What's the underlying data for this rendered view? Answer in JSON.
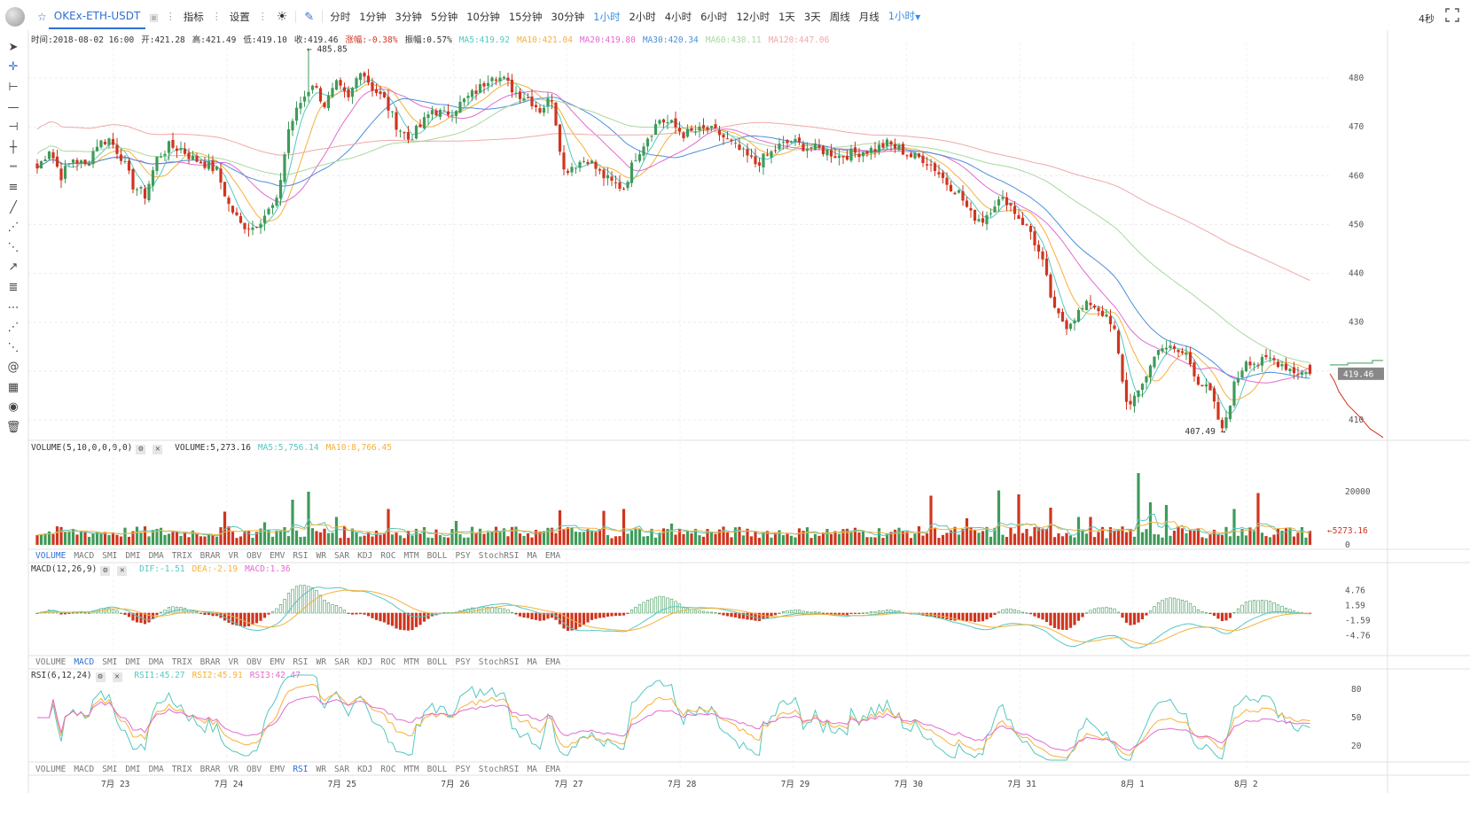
{
  "toolbar": {
    "symbol": "OKEx-ETH-USDT",
    "indicator": "指标",
    "settings": "设置",
    "periods": [
      "分时",
      "1分钟",
      "3分钟",
      "5分钟",
      "10分钟",
      "15分钟",
      "30分钟",
      "1小时",
      "2小时",
      "4小时",
      "6小时",
      "12小时",
      "1天",
      "3天",
      "周线",
      "月线"
    ],
    "active_period": "1小时",
    "period_dropdown": "1小时",
    "countdown": "4秒"
  },
  "info_line": {
    "time": "时间:2018-08-02 16:00",
    "open": "开:421.28",
    "high": "高:421.49",
    "low": "低:419.10",
    "close": "收:419.46",
    "change": "涨幅:-0.38%",
    "amplitude": "振幅:0.57%",
    "ma5": "MA5:419.92",
    "ma10": "MA10:421.04",
    "ma20": "MA20:419.80",
    "ma30": "MA30:420.34",
    "ma60": "MA60:430.11",
    "ma120": "MA120:447.06"
  },
  "volume_info": {
    "label": "VOLUME(5,10,0,0,0,0)",
    "volume": "VOLUME:5,273.16",
    "ma5": "MA5:5,756.14",
    "ma10": "MA10:8,766.45"
  },
  "macd_info": {
    "label": "MACD(12,26,9)",
    "dif": "DIF:-1.51",
    "dea": "DEA:-2.19",
    "macd": "MACD:1.36"
  },
  "rsi_info": {
    "label": "RSI(6,12,24)",
    "rsi1": "RSI1:45.27",
    "rsi2": "RSI2:45.91",
    "rsi3": "RSI3:42.47"
  },
  "indicator_tabs": [
    "VOLUME",
    "MACD",
    "SMI",
    "DMI",
    "DMA",
    "TRIX",
    "BRAR",
    "VR",
    "OBV",
    "EMV",
    "RSI",
    "WR",
    "SAR",
    "KDJ",
    "ROC",
    "MTM",
    "BOLL",
    "PSY",
    "StochRSI",
    "MA",
    "EMA"
  ],
  "tabs_active": [
    "VOLUME",
    "MACD",
    "RSI"
  ],
  "colors": {
    "up": "#3e9b5a",
    "down": "#d0351f",
    "ma5": "#55c7c0",
    "ma10": "#f5b13a",
    "ma20": "#e36ad0",
    "ma30": "#4a90d9",
    "ma60": "#a8d8a0",
    "ma120": "#f0a8a8",
    "accent": "#2f6fd6"
  },
  "icons": [
    "cursor-icon",
    "crosshair-icon",
    "ray-line-icon",
    "horizontal-line-icon",
    "horizontal-ray-icon",
    "vertical-line-icon",
    "price-range-icon",
    "parallel-channel-icon",
    "trend-line-icon",
    "fib-fan-icon",
    "pitchfork-icon",
    "arrow-line-icon",
    "fib-retracement-icon",
    "gann-fan-icon",
    "fib-channel-icon",
    "speed-fan-icon",
    "spiral-icon",
    "measure-icon",
    "eye-icon",
    "trash-icon"
  ],
  "chart_data": [
    {
      "type": "candlestick",
      "title": "OKEx-ETH-USDT 1小时",
      "x_labels": [
        "7月 23",
        "7月 24",
        "7月 25",
        "7月 26",
        "7月 27",
        "7月 28",
        "7月 29",
        "7月 30",
        "7月 31",
        "8月 1",
        "8月 2"
      ],
      "y_ticks": [
        410,
        420,
        430,
        440,
        450,
        460,
        470,
        480
      ],
      "ylim": [
        405,
        489
      ],
      "annotations": {
        "high": "485.85",
        "low": "407.49",
        "last_price": "419.46"
      },
      "close_path": [
        [
          0,
          461.5
        ],
        [
          3,
          465.5
        ],
        [
          6,
          460.0
        ],
        [
          9,
          463.5
        ],
        [
          12,
          462.0
        ],
        [
          15,
          466.5
        ],
        [
          18,
          467.5
        ],
        [
          21,
          464.0
        ],
        [
          24,
          458.0
        ],
        [
          27,
          456.0
        ],
        [
          30,
          463.5
        ],
        [
          33,
          466.0
        ],
        [
          36,
          465.5
        ],
        [
          39,
          463.5
        ],
        [
          42,
          462.5
        ],
        [
          45,
          461.0
        ],
        [
          48,
          454.0
        ],
        [
          51,
          450.0
        ],
        [
          54,
          449.5
        ],
        [
          57,
          452.0
        ],
        [
          60,
          454.5
        ],
        [
          63,
          469.5
        ],
        [
          66,
          475.0
        ],
        [
          69,
          479.0
        ],
        [
          72,
          474.5
        ],
        [
          75,
          478.5
        ],
        [
          78,
          475.5
        ],
        [
          81,
          482.0
        ],
        [
          84,
          478.0
        ],
        [
          87,
          475.5
        ],
        [
          90,
          470.5
        ],
        [
          93,
          467.5
        ],
        [
          96,
          470.0
        ],
        [
          99,
          473.5
        ],
        [
          102,
          472.5
        ],
        [
          105,
          474.0
        ],
        [
          108,
          476.0
        ],
        [
          111,
          478.0
        ],
        [
          114,
          481.0
        ],
        [
          117,
          479.5
        ],
        [
          120,
          477.0
        ],
        [
          123,
          476.0
        ],
        [
          126,
          473.5
        ],
        [
          129,
          476.0
        ],
        [
          132,
          461.0
        ],
        [
          135,
          462.5
        ],
        [
          138,
          463.5
        ],
        [
          141,
          460.5
        ],
        [
          144,
          458.5
        ],
        [
          147,
          457.5
        ],
        [
          150,
          464.0
        ],
        [
          153,
          468.0
        ],
        [
          156,
          471.5
        ],
        [
          159,
          470.5
        ],
        [
          162,
          468.5
        ],
        [
          165,
          469.0
        ],
        [
          168,
          469.5
        ],
        [
          171,
          468.5
        ],
        [
          174,
          466.5
        ],
        [
          177,
          464.5
        ],
        [
          180,
          462.5
        ],
        [
          183,
          464.0
        ],
        [
          186,
          466.0
        ],
        [
          189,
          467.0
        ],
        [
          192,
          466.0
        ],
        [
          195,
          465.5
        ],
        [
          198,
          465.0
        ],
        [
          201,
          464.0
        ],
        [
          204,
          464.5
        ],
        [
          207,
          465.0
        ],
        [
          210,
          465.5
        ],
        [
          213,
          466.5
        ],
        [
          216,
          465.5
        ],
        [
          219,
          464.0
        ],
        [
          222,
          463.5
        ],
        [
          225,
          461.5
        ],
        [
          228,
          458.5
        ],
        [
          231,
          456.5
        ],
        [
          234,
          452.0
        ],
        [
          237,
          451.0
        ],
        [
          240,
          454.5
        ],
        [
          243,
          455.0
        ],
        [
          246,
          451.5
        ],
        [
          249,
          448.5
        ],
        [
          252,
          442.0
        ],
        [
          255,
          432.0
        ],
        [
          258,
          429.5
        ],
        [
          261,
          432.0
        ],
        [
          264,
          434.0
        ],
        [
          267,
          432.0
        ],
        [
          270,
          428.0
        ],
        [
          273,
          413.5
        ],
        [
          276,
          415.0
        ],
        [
          279,
          421.5
        ],
        [
          282,
          425.5
        ],
        [
          285,
          424.0
        ],
        [
          288,
          423.5
        ],
        [
          291,
          418.0
        ],
        [
          294,
          415.5
        ],
        [
          297,
          407.5
        ],
        [
          300,
          417.0
        ],
        [
          303,
          422.5
        ],
        [
          306,
          421.5
        ],
        [
          309,
          422.5
        ],
        [
          312,
          421.5
        ],
        [
          315,
          420.0
        ],
        [
          318,
          419.46
        ]
      ]
    },
    {
      "type": "bar",
      "title": "VOLUME(5,10,0,0,0,0)",
      "y_ticks": [
        0,
        20000
      ],
      "last_value": "5273.16",
      "spikes": [
        [
          47,
          12500
        ],
        [
          57,
          8500
        ],
        [
          64,
          17000
        ],
        [
          68,
          20000
        ],
        [
          75,
          10500
        ],
        [
          88,
          13500
        ],
        [
          105,
          9000
        ],
        [
          131,
          13000
        ],
        [
          142,
          12800
        ],
        [
          147,
          13500
        ],
        [
          159,
          8000
        ],
        [
          224,
          18500
        ],
        [
          233,
          10000
        ],
        [
          241,
          20500
        ],
        [
          246,
          19000
        ],
        [
          254,
          14000
        ],
        [
          261,
          10500
        ],
        [
          264,
          10500
        ],
        [
          276,
          27000
        ],
        [
          279,
          16000
        ],
        [
          283,
          15000
        ],
        [
          300,
          13500
        ],
        [
          306,
          19500
        ]
      ]
    },
    {
      "type": "bar",
      "title": "MACD(12,26,9)",
      "y_ticks": [
        4.76,
        1.59,
        -1.59,
        -4.76
      ],
      "last_values": {
        "dif": -1.51,
        "dea": -2.19,
        "macd": 1.36
      }
    },
    {
      "type": "line",
      "title": "RSI(6,12,24)",
      "y_ticks": [
        20,
        50,
        80
      ],
      "last_values": {
        "rsi1": 45.27,
        "rsi2": 45.91,
        "rsi3": 42.47
      }
    }
  ]
}
